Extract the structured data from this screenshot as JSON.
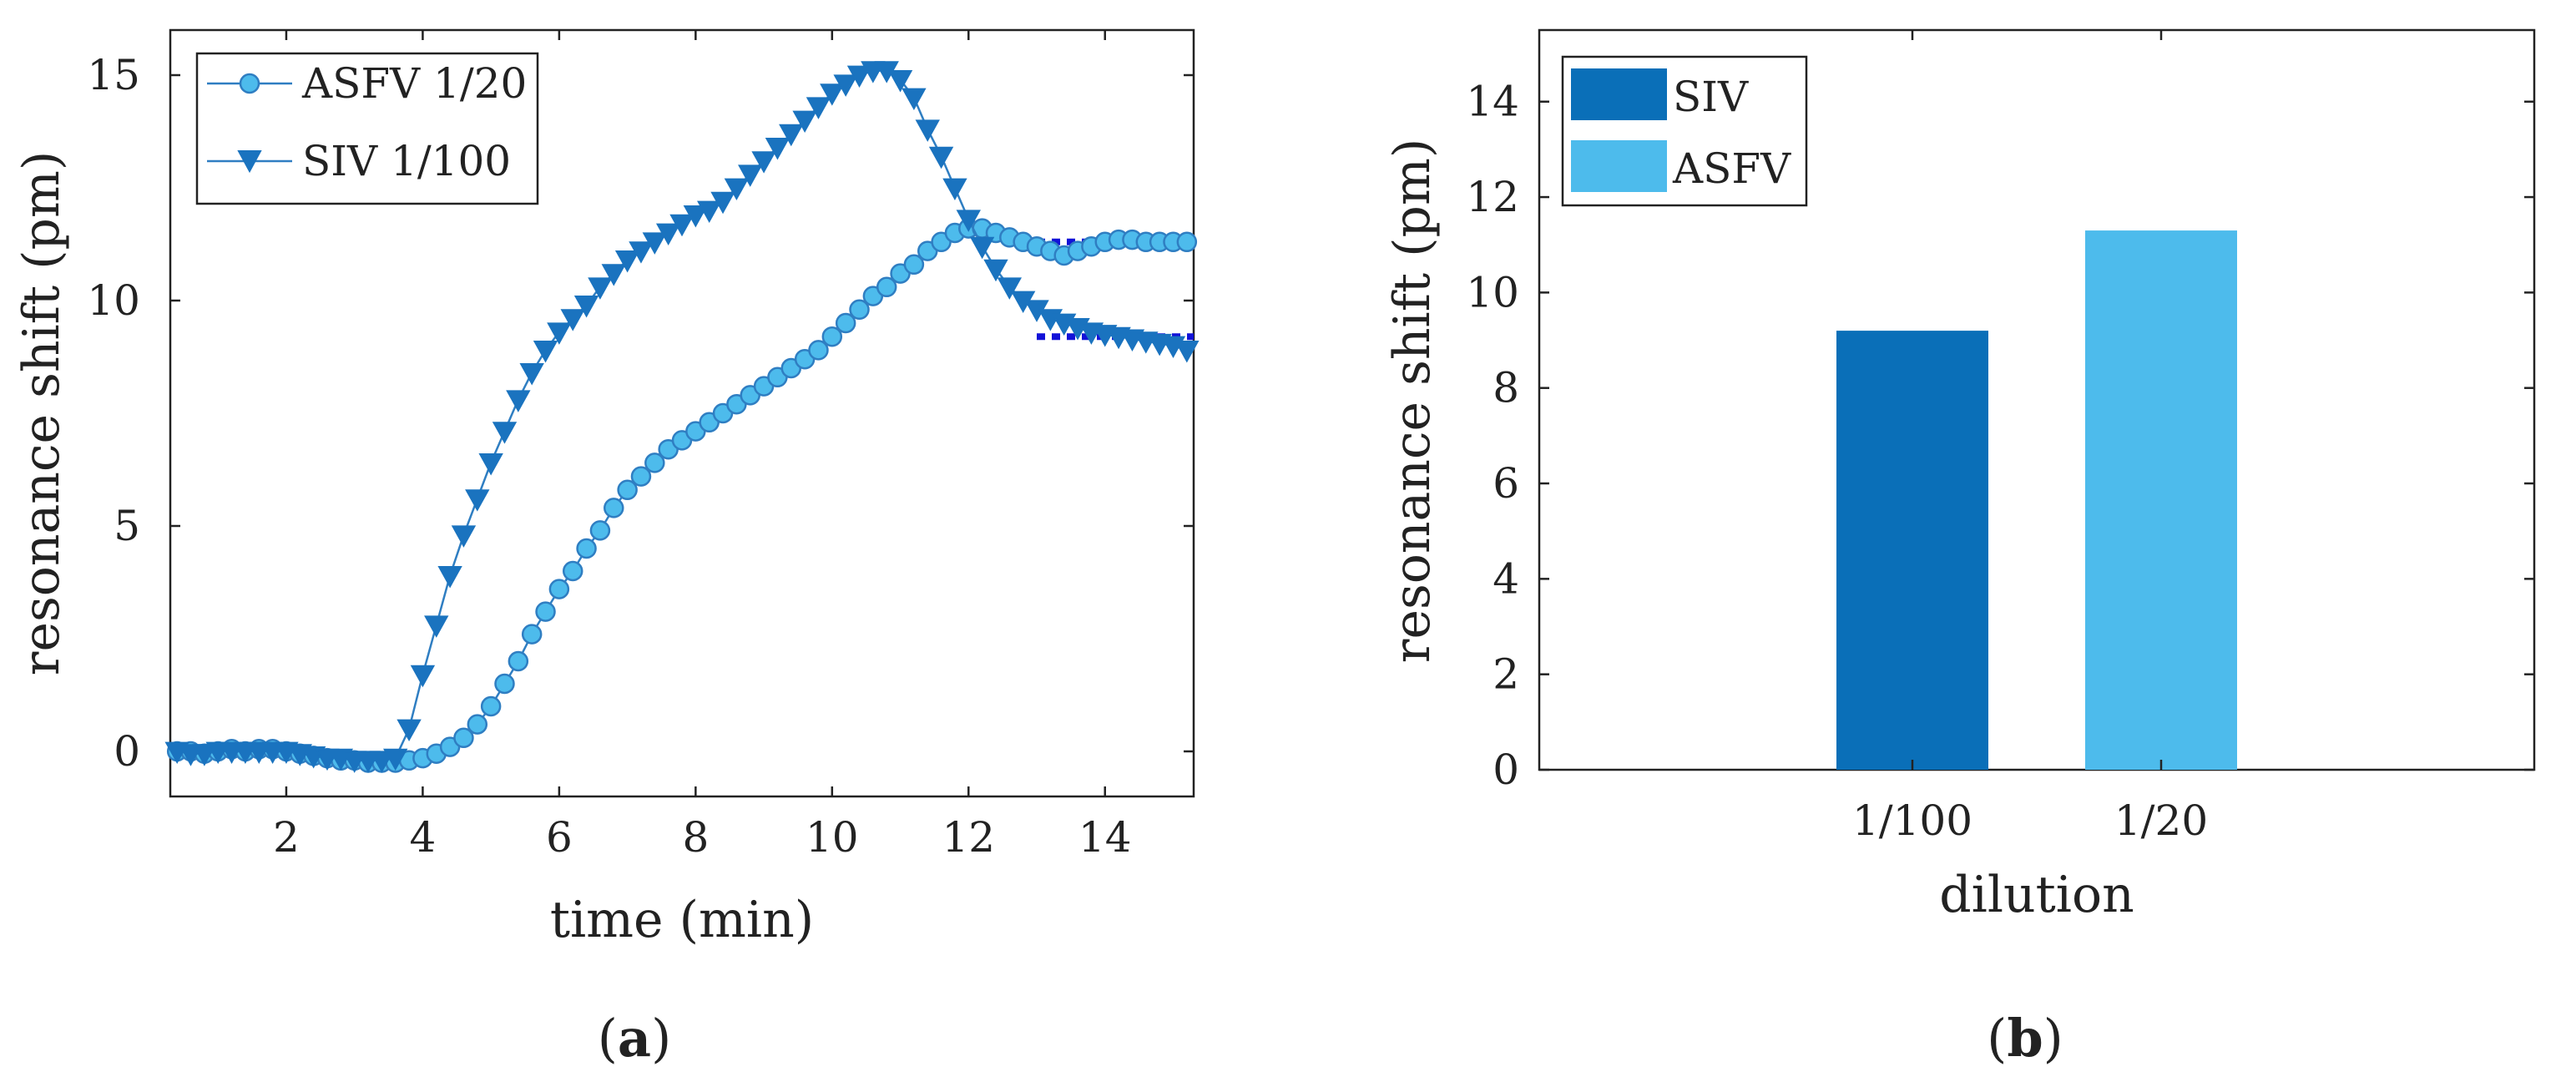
{
  "chart_data": [
    {
      "panel": "a",
      "type": "line",
      "xlabel": "time (min)",
      "ylabel": "resonance shift (pm)",
      "xlim": [
        0.3,
        15.3
      ],
      "ylim": [
        -1,
        16
      ],
      "xticks": [
        2,
        4,
        6,
        8,
        10,
        12,
        14
      ],
      "yticks": [
        0,
        5,
        10,
        15
      ],
      "legend": "top-left",
      "series": [
        {
          "name": "ASFV 1/20",
          "marker": "circle",
          "color": "#2f7ec2",
          "fill": "#4dbbec",
          "points": [
            [
              0.4,
              0
            ],
            [
              0.6,
              0
            ],
            [
              0.8,
              -0.05
            ],
            [
              1.0,
              0
            ],
            [
              1.2,
              0.05
            ],
            [
              1.4,
              0
            ],
            [
              1.6,
              0.05
            ],
            [
              1.8,
              0.05
            ],
            [
              2.0,
              0
            ],
            [
              2.2,
              -0.05
            ],
            [
              2.4,
              -0.1
            ],
            [
              2.6,
              -0.15
            ],
            [
              2.8,
              -0.2
            ],
            [
              3.0,
              -0.2
            ],
            [
              3.2,
              -0.25
            ],
            [
              3.4,
              -0.25
            ],
            [
              3.6,
              -0.25
            ],
            [
              3.8,
              -0.2
            ],
            [
              4.0,
              -0.15
            ],
            [
              4.2,
              -0.05
            ],
            [
              4.4,
              0.1
            ],
            [
              4.6,
              0.3
            ],
            [
              4.8,
              0.6
            ],
            [
              5.0,
              1.0
            ],
            [
              5.2,
              1.5
            ],
            [
              5.4,
              2.0
            ],
            [
              5.6,
              2.6
            ],
            [
              5.8,
              3.1
            ],
            [
              6.0,
              3.6
            ],
            [
              6.2,
              4.0
            ],
            [
              6.4,
              4.5
            ],
            [
              6.6,
              4.9
            ],
            [
              6.8,
              5.4
            ],
            [
              7.0,
              5.8
            ],
            [
              7.2,
              6.1
            ],
            [
              7.4,
              6.4
            ],
            [
              7.6,
              6.7
            ],
            [
              7.8,
              6.9
            ],
            [
              8.0,
              7.1
            ],
            [
              8.2,
              7.3
            ],
            [
              8.4,
              7.5
            ],
            [
              8.6,
              7.7
            ],
            [
              8.8,
              7.9
            ],
            [
              9.0,
              8.1
            ],
            [
              9.2,
              8.3
            ],
            [
              9.4,
              8.5
            ],
            [
              9.6,
              8.7
            ],
            [
              9.8,
              8.9
            ],
            [
              10.0,
              9.2
            ],
            [
              10.2,
              9.5
            ],
            [
              10.4,
              9.8
            ],
            [
              10.6,
              10.1
            ],
            [
              10.8,
              10.3
            ],
            [
              11.0,
              10.6
            ],
            [
              11.2,
              10.8
            ],
            [
              11.4,
              11.1
            ],
            [
              11.6,
              11.3
            ],
            [
              11.8,
              11.5
            ],
            [
              12.0,
              11.6
            ],
            [
              12.2,
              11.6
            ],
            [
              12.4,
              11.5
            ],
            [
              12.6,
              11.4
            ],
            [
              12.8,
              11.3
            ],
            [
              13.0,
              11.2
            ],
            [
              13.2,
              11.1
            ],
            [
              13.4,
              11.0
            ],
            [
              13.6,
              11.1
            ],
            [
              13.8,
              11.2
            ],
            [
              14.0,
              11.3
            ],
            [
              14.2,
              11.35
            ],
            [
              14.4,
              11.35
            ],
            [
              14.6,
              11.3
            ],
            [
              14.8,
              11.3
            ],
            [
              15.0,
              11.3
            ],
            [
              15.2,
              11.3
            ]
          ],
          "plateau": {
            "x_from": 13.0,
            "x_to": 15.3,
            "y": 11.3
          }
        },
        {
          "name": "SIV 1/100",
          "marker": "triangle-down",
          "color": "#2f7ec2",
          "fill": "#1a73bf",
          "points": [
            [
              0.4,
              0
            ],
            [
              0.6,
              -0.05
            ],
            [
              0.8,
              -0.05
            ],
            [
              1.0,
              0
            ],
            [
              1.2,
              0
            ],
            [
              1.4,
              0
            ],
            [
              1.6,
              0
            ],
            [
              1.8,
              0
            ],
            [
              2.0,
              0
            ],
            [
              2.2,
              -0.05
            ],
            [
              2.4,
              -0.1
            ],
            [
              2.6,
              -0.15
            ],
            [
              2.8,
              -0.15
            ],
            [
              3.0,
              -0.2
            ],
            [
              3.2,
              -0.2
            ],
            [
              3.4,
              -0.2
            ],
            [
              3.6,
              -0.15
            ],
            [
              3.8,
              0.5
            ],
            [
              4.0,
              1.7
            ],
            [
              4.2,
              2.8
            ],
            [
              4.4,
              3.9
            ],
            [
              4.6,
              4.8
            ],
            [
              4.8,
              5.6
            ],
            [
              5.0,
              6.4
            ],
            [
              5.2,
              7.1
            ],
            [
              5.4,
              7.8
            ],
            [
              5.6,
              8.4
            ],
            [
              5.8,
              8.9
            ],
            [
              6.0,
              9.3
            ],
            [
              6.2,
              9.6
            ],
            [
              6.4,
              9.9
            ],
            [
              6.6,
              10.3
            ],
            [
              6.8,
              10.6
            ],
            [
              7.0,
              10.9
            ],
            [
              7.2,
              11.1
            ],
            [
              7.4,
              11.3
            ],
            [
              7.6,
              11.5
            ],
            [
              7.8,
              11.7
            ],
            [
              8.0,
              11.9
            ],
            [
              8.2,
              12.0
            ],
            [
              8.4,
              12.2
            ],
            [
              8.6,
              12.5
            ],
            [
              8.8,
              12.8
            ],
            [
              9.0,
              13.1
            ],
            [
              9.2,
              13.4
            ],
            [
              9.4,
              13.7
            ],
            [
              9.6,
              14.0
            ],
            [
              9.8,
              14.3
            ],
            [
              10.0,
              14.6
            ],
            [
              10.2,
              14.8
            ],
            [
              10.4,
              15.0
            ],
            [
              10.6,
              15.1
            ],
            [
              10.8,
              15.1
            ],
            [
              11.0,
              14.9
            ],
            [
              11.2,
              14.5
            ],
            [
              11.4,
              13.8
            ],
            [
              11.6,
              13.2
            ],
            [
              11.8,
              12.5
            ],
            [
              12.0,
              11.8
            ],
            [
              12.2,
              11.2
            ],
            [
              12.4,
              10.7
            ],
            [
              12.6,
              10.3
            ],
            [
              12.8,
              10.0
            ],
            [
              13.0,
              9.8
            ],
            [
              13.2,
              9.6
            ],
            [
              13.4,
              9.5
            ],
            [
              13.6,
              9.4
            ],
            [
              13.8,
              9.3
            ],
            [
              14.0,
              9.25
            ],
            [
              14.2,
              9.2
            ],
            [
              14.4,
              9.15
            ],
            [
              14.6,
              9.1
            ],
            [
              14.8,
              9.05
            ],
            [
              15.0,
              9.0
            ],
            [
              15.2,
              8.9
            ]
          ],
          "plateau": {
            "x_from": 13.0,
            "x_to": 15.3,
            "y": 9.2
          }
        }
      ],
      "plateau_color": "#1212d8",
      "caption": "(a)"
    },
    {
      "panel": "b",
      "type": "bar",
      "xlabel": "dilution",
      "ylabel": "resonance shift (pm)",
      "categories": [
        "1/100",
        "1/20"
      ],
      "ylim": [
        0,
        15.5
      ],
      "yticks": [
        0,
        2,
        4,
        6,
        8,
        10,
        12,
        14
      ],
      "legend": "top-left",
      "series": [
        {
          "name": "SIV",
          "category": "1/100",
          "value": 9.2,
          "color": "#0a6fb8"
        },
        {
          "name": "ASFV",
          "category": "1/20",
          "value": 11.3,
          "color": "#4dbbec"
        }
      ],
      "caption": "(b)"
    }
  ]
}
